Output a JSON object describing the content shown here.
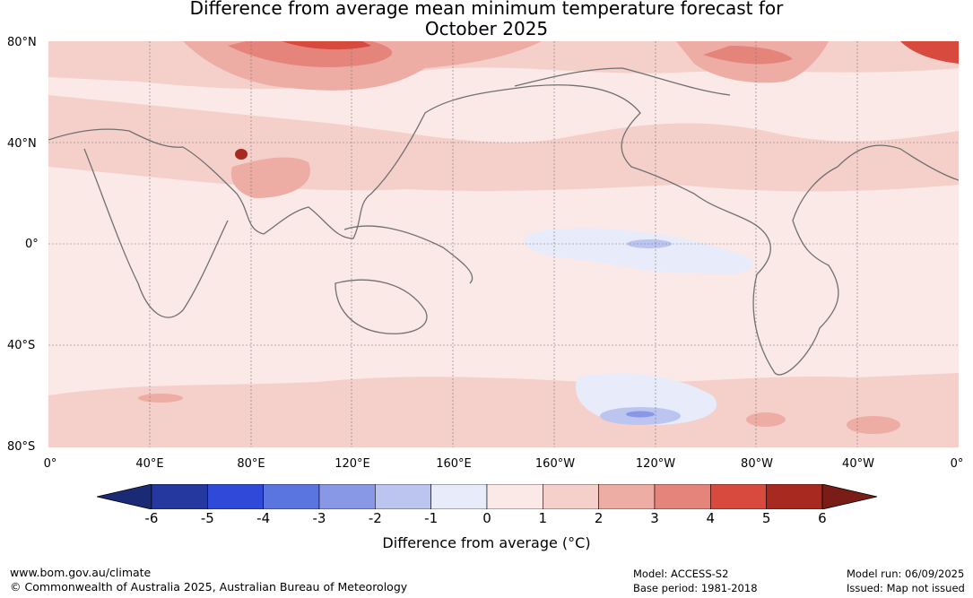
{
  "title_line1": "Difference from average mean minimum temperature forecast for",
  "title_line2": "October 2025",
  "lat_labels": [
    "80°N",
    "40°N",
    "0°",
    "40°S",
    "80°S"
  ],
  "lon_labels": [
    "0°",
    "40°E",
    "80°E",
    "120°E",
    "160°E",
    "160°W",
    "120°W",
    "80°W",
    "40°W",
    "0°"
  ],
  "colorbar": {
    "ticks": [
      "-6",
      "-5",
      "-4",
      "-3",
      "-2",
      "-1",
      "0",
      "1",
      "2",
      "3",
      "4",
      "5",
      "6"
    ],
    "colors": [
      "#25389f",
      "#2f4ad8",
      "#5a74e0",
      "#8898e6",
      "#bcc5f0",
      "#e8ebfa",
      "#fbe9e7",
      "#f5d0cb",
      "#edaca4",
      "#e5847a",
      "#d84a3e",
      "#a8291f"
    ],
    "under_color": "#1a2a75",
    "over_color": "#7a1d16",
    "label": "Difference from average (°C)"
  },
  "footer": {
    "url": "www.bom.gov.au/climate",
    "copyright": "© Commonwealth of Australia 2025, Australian Bureau of Meteorology",
    "model": "Model: ACCESS-S2",
    "base_period": "Base period: 1981-2018",
    "model_run": "Model run: 06/09/2025",
    "issued": "Issued: Map not issued"
  }
}
